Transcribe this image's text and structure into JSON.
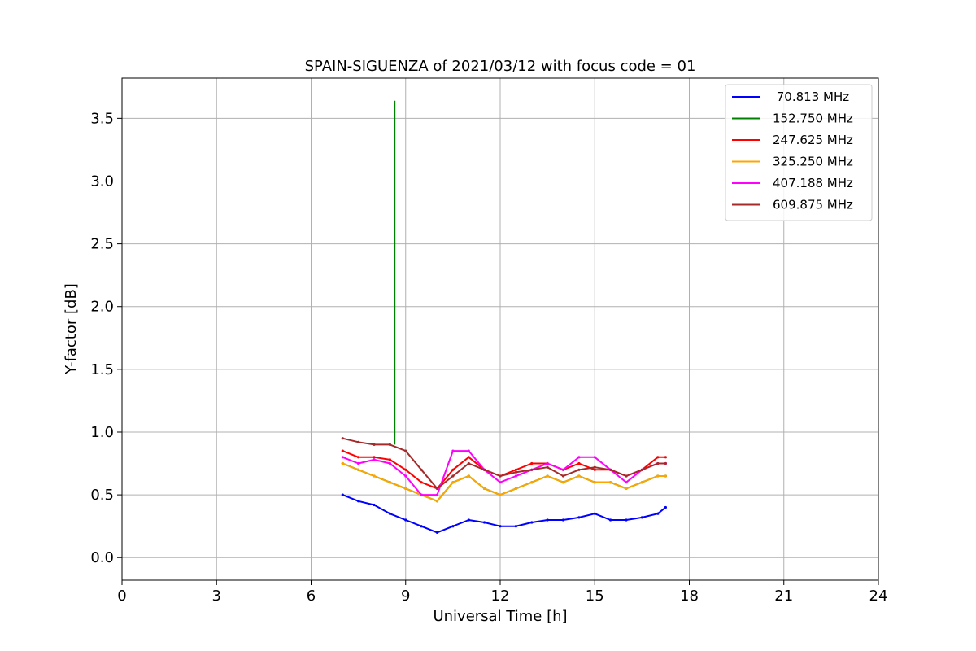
{
  "chart_data": {
    "type": "line",
    "title": "SPAIN-SIGUENZA of 2021/03/12 with focus code = 01",
    "xlabel": "Universal Time [h]",
    "ylabel": "Y-factor [dB]",
    "xlim": [
      0,
      24
    ],
    "ylim": [
      -0.18,
      3.82
    ],
    "xticks": [
      0,
      3,
      6,
      9,
      12,
      15,
      18,
      21,
      24
    ],
    "xtick_labels": [
      "0",
      "3",
      "6",
      "9",
      "12",
      "15",
      "18",
      "21",
      "24"
    ],
    "yticks": [
      0.0,
      0.5,
      1.0,
      1.5,
      2.0,
      2.5,
      3.0,
      3.5
    ],
    "ytick_labels": [
      "0.0",
      "0.5",
      "1.0",
      "1.5",
      "2.0",
      "2.5",
      "3.0",
      "3.5"
    ],
    "grid": true,
    "legend_position": "top-right",
    "x": [
      7.0,
      7.5,
      8.0,
      8.5,
      9.0,
      9.5,
      10.0,
      10.5,
      11.0,
      11.5,
      12.0,
      12.5,
      13.0,
      13.5,
      14.0,
      14.5,
      15.0,
      15.5,
      16.0,
      16.5,
      17.0,
      17.25
    ],
    "series": [
      {
        "name": " 70.813 MHz",
        "color": "#0000ff",
        "values": [
          0.5,
          0.45,
          0.42,
          0.35,
          0.3,
          0.25,
          0.2,
          0.25,
          0.3,
          0.28,
          0.25,
          0.25,
          0.28,
          0.3,
          0.3,
          0.32,
          0.35,
          0.3,
          0.3,
          0.32,
          0.35,
          0.4
        ]
      },
      {
        "name": "152.750 MHz",
        "color": "#008000",
        "values": [
          0.75,
          0.7,
          0.65,
          0.6,
          0.55,
          0.5,
          0.45,
          0.6,
          0.65,
          0.55,
          0.5,
          0.55,
          0.6,
          0.65,
          0.6,
          0.65,
          0.6,
          0.6,
          0.55,
          0.6,
          0.65,
          0.65
        ]
      },
      {
        "name": "247.625 MHz",
        "color": "#ff0000",
        "values": [
          0.85,
          0.8,
          0.8,
          0.78,
          0.7,
          0.6,
          0.55,
          0.7,
          0.8,
          0.7,
          0.65,
          0.7,
          0.75,
          0.75,
          0.7,
          0.75,
          0.7,
          0.7,
          0.65,
          0.7,
          0.8,
          0.8
        ]
      },
      {
        "name": "325.250 MHz",
        "color": "#ffa500",
        "values": [
          0.75,
          0.7,
          0.65,
          0.6,
          0.55,
          0.5,
          0.45,
          0.6,
          0.65,
          0.55,
          0.5,
          0.55,
          0.6,
          0.65,
          0.6,
          0.65,
          0.6,
          0.6,
          0.55,
          0.6,
          0.65,
          0.65
        ]
      },
      {
        "name": "407.188 MHz",
        "color": "#ff00ff",
        "values": [
          0.8,
          0.75,
          0.78,
          0.75,
          0.65,
          0.5,
          0.5,
          0.85,
          0.85,
          0.7,
          0.6,
          0.65,
          0.7,
          0.75,
          0.7,
          0.8,
          0.8,
          0.7,
          0.6,
          0.7,
          0.75,
          0.75
        ]
      },
      {
        "name": "609.875 MHz",
        "color": "#a52a2a",
        "values": [
          0.95,
          0.92,
          0.9,
          0.9,
          0.85,
          0.7,
          0.55,
          0.65,
          0.75,
          0.7,
          0.65,
          0.68,
          0.7,
          0.72,
          0.65,
          0.7,
          0.72,
          0.7,
          0.65,
          0.7,
          0.75,
          0.75
        ]
      }
    ],
    "annotations": [
      {
        "series": "152.750 MHz",
        "x": 8.65,
        "y": 3.64,
        "note": "peak"
      }
    ]
  }
}
